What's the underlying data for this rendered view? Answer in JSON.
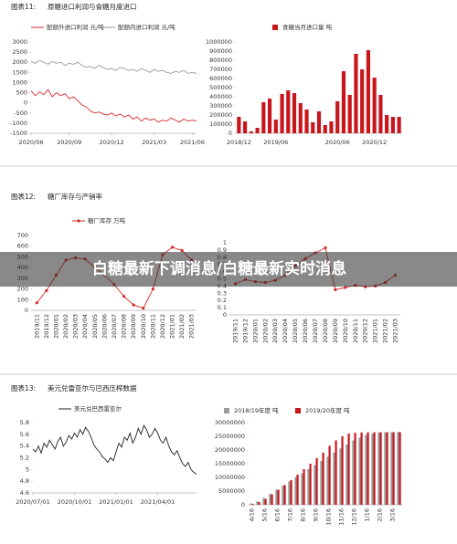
{
  "figures": [
    {
      "label": "图表11:",
      "title": "原糖进口利润与食糖月度进口"
    },
    {
      "label": "图表12:",
      "title": "糖厂库存与产销率"
    },
    {
      "label": "图表13:",
      "title": "美元兑雷亚尔与巴西压榨数据"
    }
  ],
  "overlay": "白糖最新下调消息/白糖最新实时消息",
  "chart_data": [
    {
      "type": "line",
      "xlim": [
        0,
        39
      ],
      "xticks": [
        {
          "value": 0,
          "label": "2020/06"
        },
        {
          "value": 9,
          "label": "2020/09"
        },
        {
          "value": 19,
          "label": "2020/12"
        },
        {
          "value": 29,
          "label": "2021/03"
        },
        {
          "value": 38,
          "label": "2021/06"
        }
      ],
      "ylim": [
        -1500,
        3000
      ],
      "yticks": [
        -1500,
        -1000,
        -500,
        0,
        500,
        1000,
        1500,
        2000,
        2500,
        3000
      ],
      "series": [
        {
          "name": "配额外进口利润 元/吨",
          "color": "#d62b2b",
          "values": [
            600,
            350,
            550,
            400,
            650,
            300,
            500,
            350,
            450,
            200,
            300,
            100,
            -100,
            -200,
            -400,
            -500,
            -450,
            -550,
            -600,
            -500,
            -650,
            -550,
            -700,
            -600,
            -800,
            -700,
            -900,
            -750,
            -850,
            -800,
            -950,
            -850,
            -900,
            -750,
            -850,
            -950,
            -800,
            -900,
            -850,
            -900
          ]
        },
        {
          "name": "配额内进口利润 元/吨",
          "color": "#9a9a9a",
          "values": [
            2050,
            1950,
            2100,
            2000,
            1900,
            2050,
            1950,
            2000,
            1850,
            1950,
            1900,
            2000,
            1850,
            1750,
            1800,
            1700,
            1850,
            1750,
            1650,
            1700,
            1600,
            1750,
            1700,
            1600,
            1650,
            1550,
            1700,
            1600,
            1500,
            1650,
            1550,
            1600,
            1500,
            1450,
            1550,
            1500,
            1600,
            1450,
            1500,
            1450
          ]
        }
      ]
    },
    {
      "type": "bar",
      "categories": [
        "2018/12",
        null,
        null,
        null,
        null,
        null,
        "2019/06",
        null,
        null,
        null,
        null,
        null,
        null,
        null,
        null,
        null,
        "2020/06",
        null,
        null,
        null,
        null,
        null,
        "2020/12",
        null,
        null,
        null,
        null
      ],
      "ylim": [
        0,
        1000000
      ],
      "yticks": [
        0,
        100000,
        200000,
        300000,
        400000,
        500000,
        600000,
        700000,
        800000,
        900000,
        1000000
      ],
      "series": [
        {
          "name": "食糖当月进口量 吨",
          "color": "#c8161d",
          "values": [
            180000,
            130000,
            20000,
            60000,
            340000,
            380000,
            150000,
            430000,
            470000,
            440000,
            330000,
            260000,
            120000,
            240000,
            90000,
            130000,
            350000,
            680000,
            420000,
            870000,
            700000,
            910000,
            610000,
            420000,
            200000,
            180000,
            180000
          ]
        }
      ]
    },
    {
      "type": "line",
      "markers": true,
      "categories": [
        "2019/11",
        "2019/12",
        "2020/01",
        "2020/02",
        "2020/03",
        "2020/04",
        "2020/05",
        "2020/06",
        "2020/07",
        "2020/08",
        "2020/09",
        "2020/10",
        "2020/11",
        "2020/12",
        "2021/01",
        "2021/02",
        "2021/03"
      ],
      "ylim": [
        0,
        700
      ],
      "yticks": [
        0,
        100,
        200,
        300,
        400,
        500,
        600,
        700
      ],
      "series": [
        {
          "name": "糖厂库存 万吨",
          "color": "#d62b2b",
          "values": [
            70,
            185,
            330,
            470,
            490,
            480,
            400,
            330,
            240,
            130,
            50,
            20,
            200,
            520,
            590,
            560,
            470
          ]
        }
      ]
    },
    {
      "type": "line",
      "markers": true,
      "categories": [
        "2019/11",
        "2019/12",
        "2020/01",
        "2020/02",
        "2020/03",
        "2020/04",
        "2020/05",
        "2020/06",
        "2020/07",
        "2020/08",
        "2020/09",
        "2020/10",
        "2020/11",
        "2020/12",
        "2021/01",
        "2021/02",
        "2021/03"
      ],
      "ylim": [
        0,
        1
      ],
      "yticks": [
        0,
        0.1,
        0.2,
        0.3,
        0.4,
        0.5,
        0.6,
        0.7,
        0.8,
        0.9,
        1
      ],
      "series": [
        {
          "color": "#d62b2b",
          "values": [
            0.43,
            0.49,
            0.46,
            0.45,
            0.48,
            0.55,
            0.68,
            0.78,
            0.86,
            0.93,
            0.35,
            0.38,
            0.41,
            0.39,
            0.4,
            0.45,
            0.55
          ]
        }
      ]
    },
    {
      "type": "line",
      "xlim": [
        0,
        59
      ],
      "xticks": [
        {
          "value": 0,
          "label": "2020/07/01"
        },
        {
          "value": 15,
          "label": "2020/10/01"
        },
        {
          "value": 30,
          "label": "2021/01/01"
        },
        {
          "value": 45,
          "label": "2021/04/01"
        }
      ],
      "ylim": [
        4.6,
        5.8
      ],
      "yticks": [
        4.6,
        4.8,
        5,
        5.2,
        5.4,
        5.6,
        5.8
      ],
      "series": [
        {
          "name": "美元兑巴西雷亚尔",
          "color": "#222222",
          "values": [
            5.35,
            5.3,
            5.4,
            5.28,
            5.45,
            5.38,
            5.5,
            5.42,
            5.35,
            5.48,
            5.55,
            5.4,
            5.47,
            5.58,
            5.52,
            5.62,
            5.55,
            5.68,
            5.6,
            5.72,
            5.65,
            5.55,
            5.42,
            5.35,
            5.3,
            5.22,
            5.18,
            5.12,
            5.2,
            5.15,
            5.3,
            5.45,
            5.38,
            5.55,
            5.5,
            5.62,
            5.45,
            5.55,
            5.7,
            5.6,
            5.75,
            5.68,
            5.55,
            5.6,
            5.7,
            5.62,
            5.5,
            5.45,
            5.55,
            5.4,
            5.3,
            5.25,
            5.32,
            5.2,
            5.1,
            5.05,
            5.12,
            5.0,
            4.95,
            4.92
          ]
        }
      ]
    },
    {
      "type": "bar",
      "categories": [
        "4/16",
        null,
        "5/16",
        null,
        "6/16",
        null,
        "7/16",
        null,
        "8/16",
        null,
        "9/16",
        null,
        "10/16",
        null,
        "11/16",
        null,
        "12/16",
        null,
        "1/16",
        null,
        "2/16",
        null,
        "3/16",
        null
      ],
      "ylim": [
        0,
        30000000
      ],
      "yticks": [
        0,
        5000000,
        10000000,
        15000000,
        20000000,
        25000000,
        30000000
      ],
      "series": [
        {
          "name": "2018/19年度 吨",
          "color": "#9a9a9a",
          "values": [
            500000,
            1200000,
            2500000,
            4000000,
            5500000,
            7000000,
            8500000,
            10000000,
            11500000,
            13000000,
            14500000,
            16000000,
            17500000,
            19000000,
            20500000,
            22000000,
            23500000,
            24500000,
            25500000,
            26000000,
            26400000,
            26500000,
            26500000,
            26600000
          ]
        },
        {
          "name": "2019/20年度 吨",
          "color": "#c8161d",
          "values": [
            300000,
            1000000,
            2200000,
            3800000,
            5500000,
            7200000,
            9000000,
            11000000,
            13000000,
            15000000,
            17000000,
            19000000,
            21500000,
            23500000,
            25000000,
            26000000,
            26300000,
            26400000,
            26500000,
            26500000,
            26500000,
            26500000,
            26500000,
            26500000
          ]
        }
      ]
    }
  ]
}
